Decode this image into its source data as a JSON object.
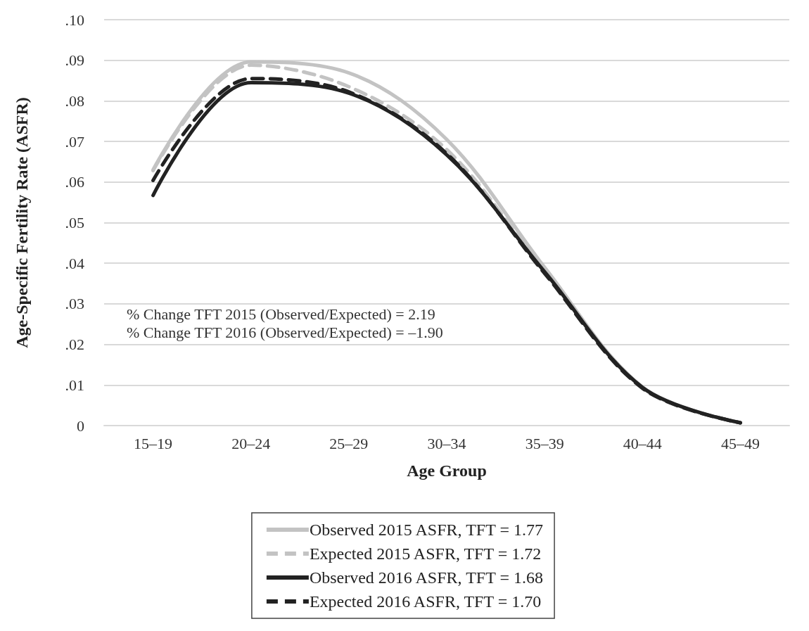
{
  "chart_data": {
    "type": "line",
    "xlabel": "Age Group",
    "ylabel": "Age-Specific Fertility Rate (ASFR)",
    "categories": [
      "15–19",
      "20–24",
      "25–29",
      "30–34",
      "35–39",
      "40–44",
      "45–49"
    ],
    "series": [
      {
        "name": "Observed 2015 ASFR, TFT = 1.77",
        "color": "#c3c3c3",
        "line_style": "solid",
        "values": [
          0.063,
          0.0896,
          0.0869,
          0.0705,
          0.039,
          0.0095,
          0.0007
        ]
      },
      {
        "name": "Expected 2015 ASFR, TFT = 1.72",
        "color": "#c3c3c3",
        "line_style": "dashed",
        "values": [
          0.0628,
          0.0888,
          0.0835,
          0.068,
          0.038,
          0.0093,
          0.0007
        ]
      },
      {
        "name": "Observed 2016 ASFR, TFT = 1.68",
        "color": "#222222",
        "line_style": "solid",
        "values": [
          0.0567,
          0.0845,
          0.0819,
          0.0667,
          0.0379,
          0.0094,
          0.0007
        ]
      },
      {
        "name": "Expected 2016 ASFR, TFT = 1.70",
        "color": "#222222",
        "line_style": "dashed",
        "values": [
          0.0604,
          0.0855,
          0.0822,
          0.067,
          0.0375,
          0.0092,
          0.0007
        ]
      }
    ],
    "ylim": [
      0,
      0.1
    ],
    "yticks": [
      0,
      {
        "value": 0.01,
        "label": ".01"
      },
      {
        "value": 0.02,
        "label": ".02"
      },
      {
        "value": 0.03,
        "label": ".03"
      },
      {
        "value": 0.04,
        "label": ".04"
      },
      {
        "value": 0.05,
        "label": ".05"
      },
      {
        "value": 0.06,
        "label": ".06"
      },
      {
        "value": 0.07,
        "label": ".07"
      },
      {
        "value": 0.08,
        "label": ".08"
      },
      {
        "value": 0.09,
        "label": ".09"
      },
      {
        "value": 0.1,
        "label": ".10"
      }
    ],
    "annotations": [
      "% Change TFT 2015 (Observed/Expected) = 2.19",
      "% Change TFT 2016 (Observed/Expected) = –1.90"
    ],
    "grid": "y",
    "legend": "bottom",
    "marker": "none"
  }
}
